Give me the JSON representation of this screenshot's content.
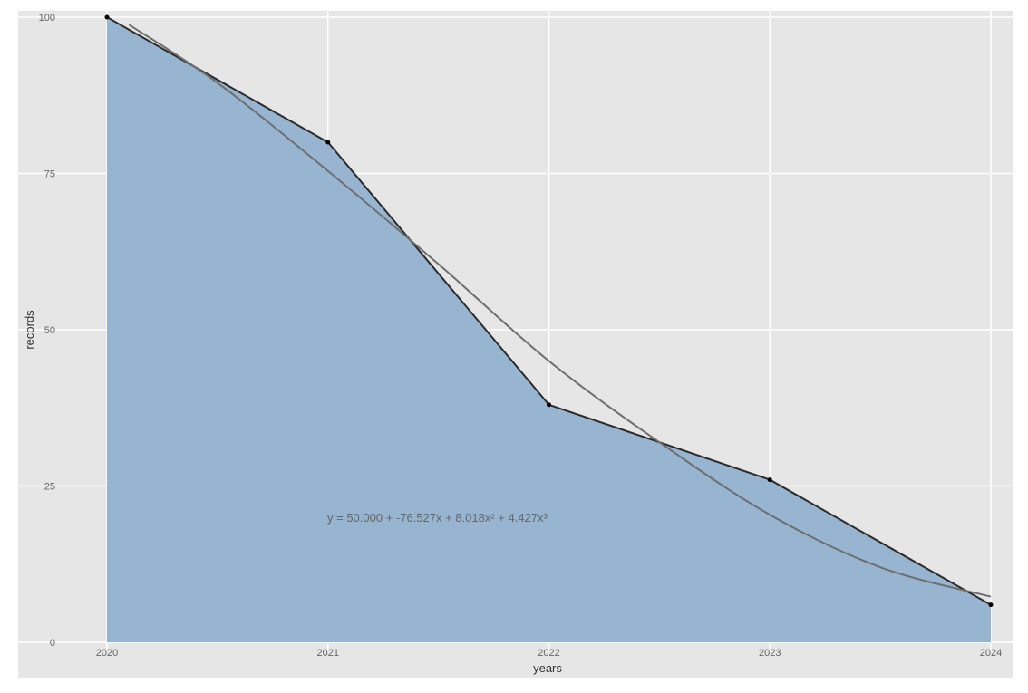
{
  "chart_data": {
    "type": "area",
    "title": "",
    "xlabel": "years",
    "ylabel": "records",
    "x": [
      2020,
      2021,
      2022,
      2023,
      2024
    ],
    "categories": [
      "2020",
      "2021",
      "2022",
      "2023",
      "2024"
    ],
    "series": [
      {
        "name": "records",
        "values": [
          100,
          80,
          38,
          26,
          6
        ]
      },
      {
        "name": "cubic fit",
        "values": [
          99,
          75.4,
          45,
          20.4,
          7.3
        ]
      }
    ],
    "fit": {
      "label": "y = 50.000 + -76.527x + 8.018x² + 4.427x³",
      "curve_x": [
        2020.1,
        2020.5,
        2021,
        2021.5,
        2022,
        2022.5,
        2023,
        2023.5,
        2024
      ],
      "curve_y": [
        98.8,
        89.5,
        75.4,
        60.5,
        45.0,
        32.0,
        20.4,
        12.0,
        7.3
      ]
    },
    "xlim": [
      2019.6,
      2024.1
    ],
    "ylim": [
      0,
      100
    ],
    "y_ticks": [
      0,
      25,
      50,
      75,
      100
    ],
    "x_ticks": [
      2020,
      2021,
      2022,
      2023,
      2024
    ],
    "grid": true,
    "legend": "none",
    "colors": {
      "panel_bg": "#E6E6E6",
      "grid": "#FFFFFF",
      "area_fill": "#97B4D1",
      "line": "#2B2B2B",
      "fit_line": "#6E6E6E",
      "point": "#000000",
      "tick_text": "#666666",
      "axis_title": "#333333"
    }
  },
  "labels": {
    "xlabel": "years",
    "ylabel": "records",
    "equation": "y = 50.000 + -76.527x + 8.018x² + 4.427x³",
    "y_ticks": [
      "0",
      "25",
      "50",
      "75",
      "100"
    ],
    "x_ticks": [
      "2020",
      "2021",
      "2022",
      "2023",
      "2024"
    ]
  }
}
